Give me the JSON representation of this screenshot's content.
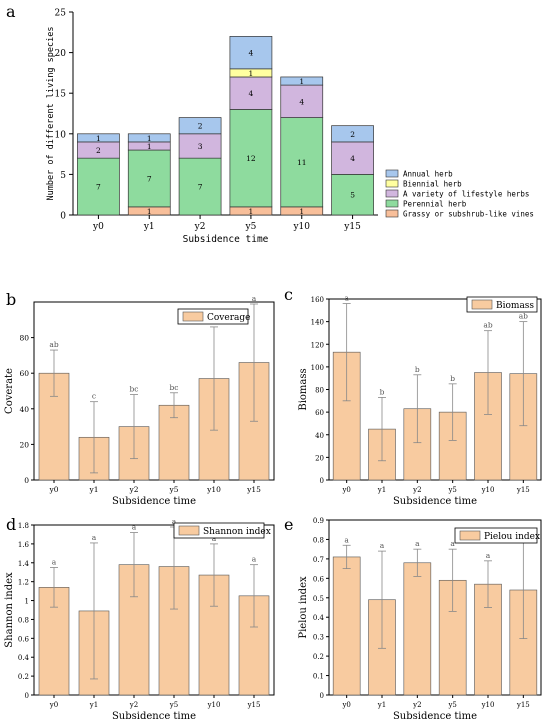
{
  "panel_labels": [
    "a",
    "b",
    "c",
    "d",
    "e"
  ],
  "colors": {
    "annual": "#A7C7ED",
    "biennial": "#FFFFA0",
    "variety": "#D1B6DE",
    "perennial": "#8EDB9E",
    "grassy": "#F8BF9A",
    "bar": "#F8CBA0",
    "axis": "#000000",
    "error": "#888888"
  },
  "chart_data": [
    {
      "id": "a",
      "type": "bar",
      "stacked": true,
      "categories": [
        "y0",
        "y1",
        "y2",
        "y5",
        "y10",
        "y15"
      ],
      "series": [
        {
          "name": "Grassy or subshrub-like vines",
          "key": "grassy",
          "values": [
            0,
            1,
            0,
            1,
            1,
            0
          ]
        },
        {
          "name": "Perennial herb",
          "key": "perennial",
          "values": [
            7,
            7,
            7,
            12,
            11,
            5
          ]
        },
        {
          "name": "A variety of lifestyle herbs",
          "key": "variety",
          "values": [
            2,
            1,
            3,
            4,
            4,
            4
          ]
        },
        {
          "name": "Biennial herb",
          "key": "biennial",
          "values": [
            0,
            0,
            0,
            1,
            0,
            0
          ]
        },
        {
          "name": "Annual herb",
          "key": "annual",
          "values": [
            1,
            1,
            2,
            4,
            1,
            2
          ]
        }
      ],
      "legend_order": [
        "Annual herb",
        "Biennial herb",
        "A variety of lifestyle herbs",
        "Perennial herb",
        "Grassy or subshrub-like vines"
      ],
      "xlabel": "Subsidence time",
      "ylabel": "Number of different living species",
      "ylim": [
        0,
        25
      ],
      "yticks": [
        0,
        5,
        10,
        15,
        20,
        25
      ],
      "legend": "right"
    },
    {
      "id": "b",
      "type": "bar",
      "categories": [
        "y0",
        "y1",
        "y2",
        "y5",
        "y10",
        "y15"
      ],
      "series": [
        {
          "name": "Coverage",
          "values": [
            60,
            24,
            30,
            42,
            57,
            66
          ]
        }
      ],
      "errors": [
        13,
        20,
        18,
        7,
        29,
        33
      ],
      "letters": [
        "ab",
        "c",
        "bc",
        "bc",
        "ab",
        "a"
      ],
      "xlabel": "Subsidence time",
      "ylabel": "Coverate",
      "ylim": [
        0,
        100
      ],
      "yticks": [
        0,
        20,
        40,
        60,
        80
      ],
      "legend": "top-right"
    },
    {
      "id": "c",
      "type": "bar",
      "categories": [
        "y0",
        "y1",
        "y2",
        "y5",
        "y10",
        "y15"
      ],
      "series": [
        {
          "name": "Biomass",
          "values": [
            113,
            45,
            63,
            60,
            95,
            94
          ]
        }
      ],
      "errors": [
        43,
        28,
        30,
        25,
        37,
        46
      ],
      "letters": [
        "a",
        "b",
        "b",
        "b",
        "ab",
        "ab"
      ],
      "xlabel": "Subsidence time",
      "ylabel": "Biomass",
      "ylim": [
        0,
        160
      ],
      "yticks": [
        0,
        20,
        40,
        60,
        80,
        100,
        120,
        140,
        160
      ],
      "legend": "top-right"
    },
    {
      "id": "d",
      "type": "bar",
      "categories": [
        "y0",
        "y1",
        "y2",
        "y5",
        "y10",
        "y15"
      ],
      "series": [
        {
          "name": "Shannon index",
          "values": [
            1.14,
            0.89,
            1.38,
            1.36,
            1.27,
            1.05
          ]
        }
      ],
      "errors": [
        0.21,
        0.72,
        0.34,
        0.45,
        0.33,
        0.33
      ],
      "letters": [
        "a",
        "a",
        "a",
        "a",
        "a",
        "a"
      ],
      "xlabel": "Subsidence time",
      "ylabel": "Shannon index",
      "ylim": [
        0,
        1.8
      ],
      "yticks": [
        0,
        0.2,
        0.4,
        0.6,
        0.8,
        1.0,
        1.2,
        1.4,
        1.6,
        1.8
      ],
      "ytick_labels": [
        "0",
        "0.2",
        "0.4",
        "0.6",
        "0.8",
        "1",
        "1.2",
        "1.4",
        "1.6",
        "1.8"
      ],
      "legend": "top-right"
    },
    {
      "id": "e",
      "type": "bar",
      "categories": [
        "y0",
        "y1",
        "y2",
        "y5",
        "y10",
        "y15"
      ],
      "series": [
        {
          "name": "Pielou index",
          "values": [
            0.71,
            0.49,
            0.68,
            0.59,
            0.57,
            0.54
          ]
        }
      ],
      "errors": [
        0.06,
        0.25,
        0.07,
        0.16,
        0.12,
        0.25
      ],
      "letters": [
        "a",
        "a",
        "a",
        "a",
        "a",
        "a"
      ],
      "xlabel": "Subsidence time",
      "ylabel": "Pielou index",
      "ylim": [
        0,
        0.9
      ],
      "yticks": [
        0,
        0.1,
        0.2,
        0.3,
        0.4,
        0.5,
        0.6,
        0.7,
        0.8,
        0.9
      ],
      "ytick_labels": [
        "0",
        "0.1",
        "0.2",
        "0.3",
        "0.4",
        "0.5",
        "0.6",
        "0.7",
        "0.8",
        "0.9"
      ],
      "legend": "top-right"
    }
  ]
}
